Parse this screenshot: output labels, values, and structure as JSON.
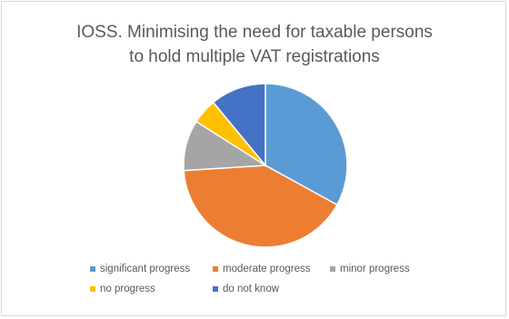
{
  "chart_data": {
    "type": "pie",
    "title_lines": [
      "IOSS. Minimising the need for taxable persons",
      "to hold multiple VAT registrations"
    ],
    "categories": [
      "significant progress",
      "moderate progress",
      "minor progress",
      "no progress",
      "do not know"
    ],
    "values": [
      33,
      41,
      10,
      5,
      11
    ],
    "colors": [
      "#5b9bd5",
      "#ed7d31",
      "#a5a5a5",
      "#ffc000",
      "#4472c4"
    ],
    "start_angle_deg": 0,
    "legend_position": "bottom"
  }
}
